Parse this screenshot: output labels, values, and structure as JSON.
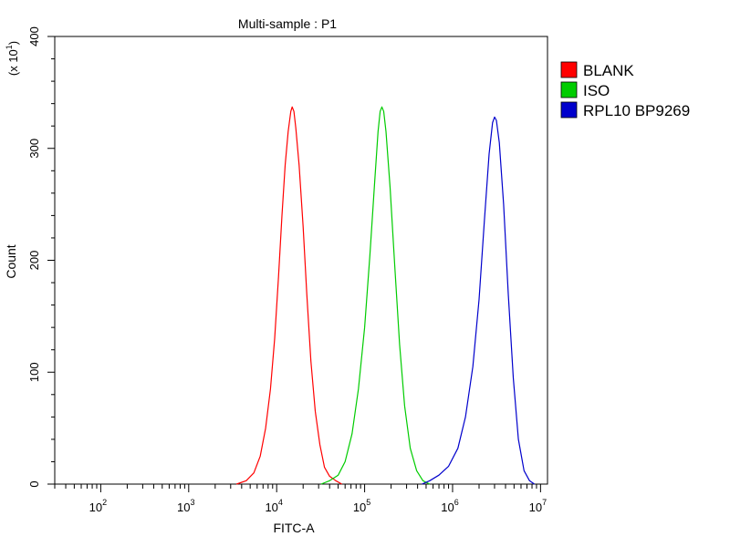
{
  "chart_data": {
    "type": "line",
    "title": "Multi-sample : P1",
    "xlabel": "FITC-A",
    "ylabel": "Count",
    "y_multiplier_label": "(x 10",
    "y_multiplier_exp": "1",
    "y_multiplier_close": ")",
    "xscale": "log",
    "xlim": [
      30,
      12000000
    ],
    "ylim": [
      0,
      400
    ],
    "x_ticks": [
      {
        "base": "10",
        "exp": "2",
        "value": 100
      },
      {
        "base": "10",
        "exp": "3",
        "value": 1000
      },
      {
        "base": "10",
        "exp": "4",
        "value": 10000
      },
      {
        "base": "10",
        "exp": "5",
        "value": 100000
      },
      {
        "base": "10",
        "exp": "6",
        "value": 1000000
      },
      {
        "base": "10",
        "exp": "7",
        "value": 10000000
      }
    ],
    "y_ticks": [
      "0",
      "100",
      "200",
      "300",
      "400"
    ],
    "y_tick_values": [
      0,
      100,
      200,
      300,
      400
    ],
    "legend_position": "top-right",
    "grid": false,
    "series": [
      {
        "name": "BLANK",
        "color": "#ff0000",
        "points": [
          [
            3500,
            0
          ],
          [
            4500,
            3
          ],
          [
            5500,
            10
          ],
          [
            6500,
            25
          ],
          [
            7500,
            50
          ],
          [
            8500,
            85
          ],
          [
            9500,
            130
          ],
          [
            10500,
            185
          ],
          [
            11500,
            240
          ],
          [
            12500,
            285
          ],
          [
            13500,
            315
          ],
          [
            14500,
            333
          ],
          [
            15000,
            337
          ],
          [
            15700,
            333
          ],
          [
            16500,
            318
          ],
          [
            18000,
            285
          ],
          [
            20000,
            230
          ],
          [
            22000,
            170
          ],
          [
            24500,
            110
          ],
          [
            27500,
            65
          ],
          [
            31000,
            35
          ],
          [
            35000,
            15
          ],
          [
            40000,
            7
          ],
          [
            47000,
            3
          ],
          [
            55000,
            0
          ]
        ]
      },
      {
        "name": "ISO",
        "color": "#00cc00",
        "points": [
          [
            32000,
            0
          ],
          [
            40000,
            3
          ],
          [
            50000,
            8
          ],
          [
            60000,
            20
          ],
          [
            72000,
            45
          ],
          [
            85000,
            85
          ],
          [
            100000,
            140
          ],
          [
            115000,
            205
          ],
          [
            130000,
            270
          ],
          [
            142000,
            315
          ],
          [
            150000,
            333
          ],
          [
            157000,
            337
          ],
          [
            165000,
            333
          ],
          [
            175000,
            315
          ],
          [
            195000,
            265
          ],
          [
            220000,
            195
          ],
          [
            250000,
            125
          ],
          [
            285000,
            70
          ],
          [
            330000,
            32
          ],
          [
            390000,
            12
          ],
          [
            460000,
            3
          ],
          [
            550000,
            0
          ]
        ]
      },
      {
        "name": "RPL10 BP9269",
        "color": "#0000cc",
        "points": [
          [
            450000,
            0
          ],
          [
            550000,
            3
          ],
          [
            700000,
            8
          ],
          [
            900000,
            16
          ],
          [
            1150000,
            32
          ],
          [
            1400000,
            60
          ],
          [
            1700000,
            105
          ],
          [
            2000000,
            165
          ],
          [
            2300000,
            235
          ],
          [
            2600000,
            295
          ],
          [
            2850000,
            323
          ],
          [
            3000000,
            328
          ],
          [
            3150000,
            325
          ],
          [
            3400000,
            305
          ],
          [
            3800000,
            250
          ],
          [
            4300000,
            170
          ],
          [
            4900000,
            95
          ],
          [
            5600000,
            40
          ],
          [
            6500000,
            12
          ],
          [
            7500000,
            3
          ],
          [
            8500000,
            0
          ]
        ]
      }
    ]
  }
}
